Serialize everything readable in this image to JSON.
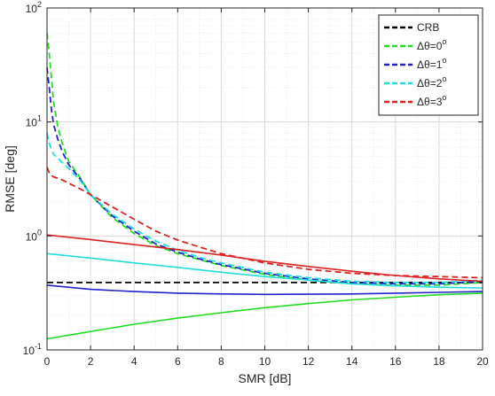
{
  "chart_data": {
    "type": "line",
    "xlabel": "SMR [dB]",
    "ylabel": "RMSE [deg]",
    "xlim": [
      0,
      20
    ],
    "ylim": [
      0.1,
      100
    ],
    "yscale": "log",
    "grid": "major and minor",
    "legend_position": "top-right",
    "x_ticks": [
      "0",
      "2",
      "4",
      "6",
      "8",
      "10",
      "12",
      "14",
      "16",
      "18",
      "20"
    ],
    "y_ticks": [
      {
        "base": "10",
        "exp": "-1",
        "value": 0.1
      },
      {
        "base": "10",
        "exp": "0",
        "value": 1
      },
      {
        "base": "10",
        "exp": "1",
        "value": 10
      },
      {
        "base": "10",
        "exp": "2",
        "value": 100
      }
    ],
    "series": [
      {
        "name": "CRB",
        "prefix": "",
        "value": "",
        "color": "#000000",
        "style": "dashed",
        "x": [
          0,
          20
        ],
        "y": [
          0.39,
          0.39
        ]
      },
      {
        "name": "Δθ=0°",
        "prefix": "Δθ=0",
        "value": "0",
        "color": "#22dd22",
        "style": "dashed",
        "x": [
          0,
          0.1,
          0.2,
          0.3,
          0.5,
          0.7,
          1,
          1.5,
          2,
          3,
          4,
          5,
          6,
          7,
          8,
          10,
          12,
          14,
          16,
          18,
          20
        ],
        "y": [
          60,
          40,
          25,
          15,
          9,
          6.5,
          4.5,
          3.3,
          2.3,
          1.45,
          1.05,
          0.82,
          0.7,
          0.62,
          0.55,
          0.46,
          0.41,
          0.38,
          0.37,
          0.37,
          0.39
        ]
      },
      {
        "name": "Δθ=1°",
        "prefix": "Δθ=1",
        "value": "1",
        "color": "#2222cc",
        "style": "dashed",
        "x": [
          0,
          0.1,
          0.2,
          0.3,
          0.5,
          0.7,
          1,
          1.5,
          2,
          3,
          4,
          5,
          6,
          7,
          8,
          10,
          12,
          14,
          16,
          18,
          20
        ],
        "y": [
          30,
          20,
          13,
          9.5,
          7,
          5.5,
          4.2,
          3.2,
          2.3,
          1.5,
          1.1,
          0.85,
          0.72,
          0.63,
          0.56,
          0.47,
          0.42,
          0.39,
          0.38,
          0.38,
          0.4
        ]
      },
      {
        "name": "Δθ=2°",
        "prefix": "Δθ=2",
        "value": "2",
        "color": "#22dddd",
        "style": "dashed",
        "x": [
          0,
          0.1,
          0.2,
          0.3,
          0.5,
          0.7,
          1,
          1.5,
          2,
          3,
          4,
          5,
          6,
          7,
          8,
          10,
          12,
          14,
          16,
          18,
          20
        ],
        "y": [
          8,
          6.5,
          5.8,
          5.2,
          4.8,
          4.4,
          3.9,
          3.1,
          2.3,
          1.55,
          1.15,
          0.9,
          0.75,
          0.65,
          0.58,
          0.48,
          0.43,
          0.4,
          0.39,
          0.39,
          0.41
        ]
      },
      {
        "name": "Δθ=3°",
        "prefix": "Δθ=3",
        "value": "3",
        "color": "#dd2222",
        "style": "dashed",
        "x": [
          0,
          0.1,
          0.2,
          0.3,
          0.5,
          0.7,
          1,
          1.5,
          2,
          3,
          4,
          5,
          6,
          7,
          8,
          10,
          12,
          14,
          16,
          18,
          20
        ],
        "y": [
          4,
          3.6,
          3.4,
          3.3,
          3.2,
          3.1,
          2.9,
          2.6,
          2.3,
          1.8,
          1.4,
          1.1,
          0.92,
          0.8,
          0.7,
          0.58,
          0.51,
          0.47,
          0.45,
          0.44,
          0.43
        ]
      },
      {
        "name": "",
        "prefix": "",
        "value": "",
        "color": "#22dd22",
        "style": "solid",
        "x": [
          0,
          2,
          4,
          6,
          8,
          10,
          12,
          14,
          16,
          18,
          20
        ],
        "y": [
          0.125,
          0.145,
          0.168,
          0.19,
          0.212,
          0.235,
          0.255,
          0.275,
          0.29,
          0.305,
          0.315
        ]
      },
      {
        "name": "",
        "prefix": "",
        "value": "",
        "color": "#2222cc",
        "style": "solid",
        "x": [
          0,
          2,
          4,
          6,
          8,
          10,
          12,
          14,
          16,
          18,
          20
        ],
        "y": [
          0.37,
          0.34,
          0.325,
          0.315,
          0.31,
          0.307,
          0.308,
          0.31,
          0.315,
          0.32,
          0.325
        ]
      },
      {
        "name": "",
        "prefix": "",
        "value": "",
        "color": "#22dddd",
        "style": "solid",
        "x": [
          0,
          2,
          4,
          6,
          8,
          10,
          12,
          14,
          16,
          18,
          20
        ],
        "y": [
          0.7,
          0.64,
          0.58,
          0.53,
          0.48,
          0.44,
          0.41,
          0.38,
          0.365,
          0.355,
          0.35
        ]
      },
      {
        "name": "",
        "prefix": "",
        "value": "",
        "color": "#dd2222",
        "style": "solid",
        "x": [
          0,
          2,
          4,
          6,
          8,
          10,
          12,
          14,
          16,
          18,
          20
        ],
        "y": [
          1.02,
          0.93,
          0.84,
          0.76,
          0.68,
          0.6,
          0.54,
          0.49,
          0.45,
          0.42,
          0.4
        ]
      }
    ]
  }
}
